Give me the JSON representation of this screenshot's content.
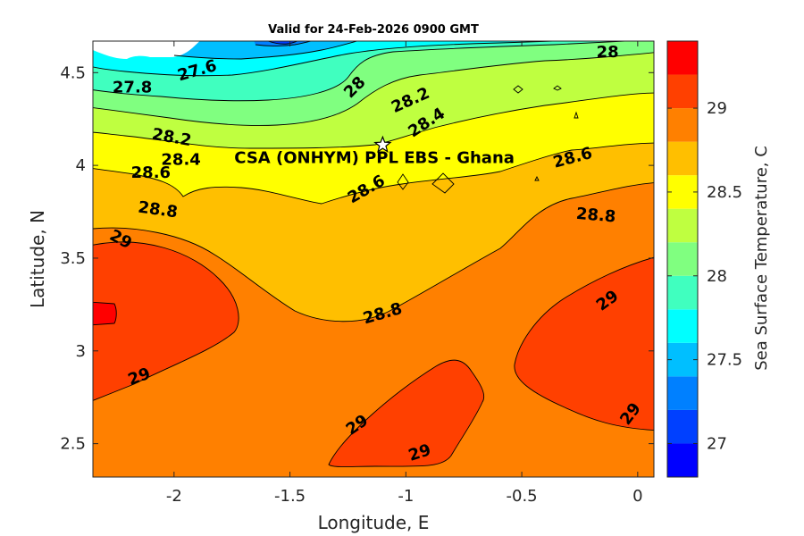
{
  "chart_data": {
    "type": "heatmap",
    "title": "Valid for 24-Feb-2026 0900 GMT",
    "xlabel": "Longitude, E",
    "ylabel": "Latitude, N",
    "xlim": [
      -2.35,
      0.07
    ],
    "ylim": [
      2.32,
      4.67
    ],
    "x_ticks": [
      -2,
      -1.5,
      -1,
      -0.5,
      0
    ],
    "x_tick_labels": [
      "-2",
      "-1.5",
      "-1",
      "-0.5",
      "0"
    ],
    "y_ticks": [
      2.5,
      3,
      3.5,
      4,
      4.5
    ],
    "y_tick_labels": [
      "2.5",
      "3",
      "3.5",
      "4",
      "4.5"
    ],
    "colorbar": {
      "label": "Sea Surface Temperature, C",
      "min": 26.8,
      "max": 29.4,
      "level_step": 0.1,
      "ticks": [
        27,
        27.5,
        28,
        28.5,
        29
      ],
      "tick_labels": [
        "27",
        "27.5",
        "28",
        "28.5",
        "29"
      ],
      "colors": [
        "#0000ff",
        "#0040ff",
        "#0080ff",
        "#00bfff",
        "#00ffff",
        "#40ffbf",
        "#80ff80",
        "#bfff40",
        "#ffff00",
        "#ffbf00",
        "#ff8000",
        "#ff4000",
        "#ff0000"
      ]
    },
    "contour_levels": [
      27.6,
      27.8,
      28,
      28.2,
      28.4,
      28.6,
      28.8,
      29
    ],
    "contour_labels": [
      {
        "text": "27.6",
        "lon": -1.9,
        "lat": 4.51,
        "rotate": -16
      },
      {
        "text": "27.8",
        "lon": -2.18,
        "lat": 4.42,
        "rotate": 0
      },
      {
        "text": "28",
        "lon": -0.13,
        "lat": 4.61,
        "rotate": 0
      },
      {
        "text": "28",
        "lon": -1.22,
        "lat": 4.42,
        "rotate": -45
      },
      {
        "text": "28.2",
        "lon": -0.98,
        "lat": 4.35,
        "rotate": -24
      },
      {
        "text": "28.2",
        "lon": -2.01,
        "lat": 4.15,
        "rotate": 10
      },
      {
        "text": "28.4",
        "lon": -0.91,
        "lat": 4.23,
        "rotate": -33
      },
      {
        "text": "28.4",
        "lon": -1.97,
        "lat": 4.03,
        "rotate": 0
      },
      {
        "text": "28.6",
        "lon": -2.1,
        "lat": 3.96,
        "rotate": 0
      },
      {
        "text": "28.6",
        "lon": -1.17,
        "lat": 3.87,
        "rotate": -30
      },
      {
        "text": "28.6",
        "lon": -0.28,
        "lat": 4.04,
        "rotate": -15
      },
      {
        "text": "28.8",
        "lon": -2.07,
        "lat": 3.76,
        "rotate": 8
      },
      {
        "text": "28.8",
        "lon": -0.18,
        "lat": 3.73,
        "rotate": 5
      },
      {
        "text": "28.8",
        "lon": -1.1,
        "lat": 3.2,
        "rotate": -16
      },
      {
        "text": "29",
        "lon": -2.23,
        "lat": 3.6,
        "rotate": 28
      },
      {
        "text": "29",
        "lon": -2.15,
        "lat": 2.86,
        "rotate": -20
      },
      {
        "text": "29",
        "lon": -1.21,
        "lat": 2.6,
        "rotate": -35
      },
      {
        "text": "29",
        "lon": -0.94,
        "lat": 2.45,
        "rotate": -18
      },
      {
        "text": "29",
        "lon": -0.13,
        "lat": 3.27,
        "rotate": -36
      },
      {
        "text": "29",
        "lon": -0.03,
        "lat": 2.66,
        "rotate": -53
      }
    ],
    "station": {
      "name": "CSA (ONHYM) PPL EBS  - Ghana",
      "lon": -1.1,
      "lat": 4.11,
      "marker": "star",
      "label_lon": -1.74,
      "label_lat": 4.04
    }
  }
}
